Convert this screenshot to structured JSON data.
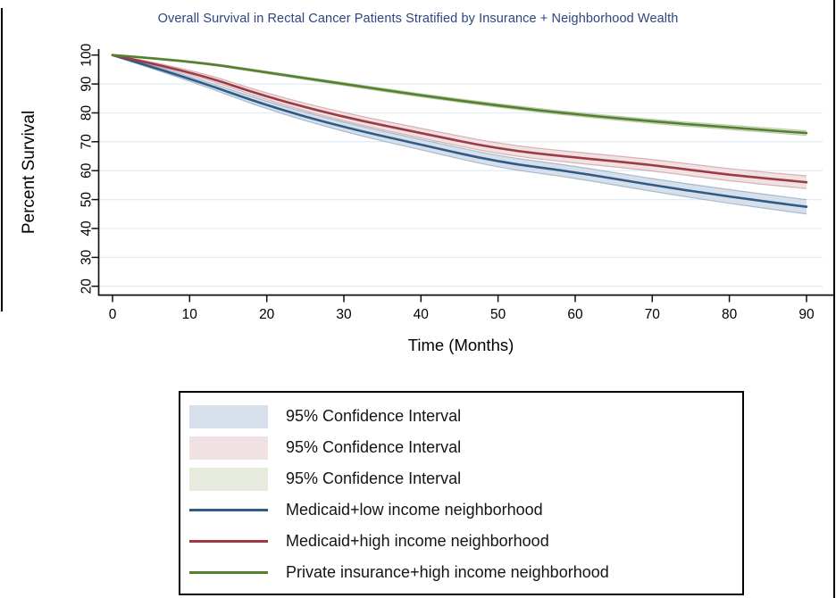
{
  "title": "Overall Survival in Rectal Cancer Patients Stratified by Insurance + Neighborhood Wealth",
  "title_color": "#2b4680",
  "chart_data": {
    "type": "line",
    "subtype": "kaplan-meier-survival",
    "title": "Overall Survival in Rectal Cancer Patients Stratified by Insurance + Neighborhood Wealth",
    "xlabel": "Time (Months)",
    "ylabel": "Percent Survival",
    "x": [
      0,
      10,
      20,
      30,
      40,
      50,
      60,
      70,
      80,
      90
    ],
    "x_ticks": [
      0,
      10,
      20,
      30,
      40,
      50,
      60,
      70,
      80,
      90
    ],
    "y_ticks": [
      20,
      30,
      40,
      50,
      60,
      70,
      80,
      90,
      100
    ],
    "xlim": [
      0,
      93
    ],
    "ylim": [
      17,
      100
    ],
    "grid": "horizontal",
    "gridline_values": [
      20,
      30,
      40,
      50,
      60,
      70,
      80,
      90
    ],
    "grid_color": "#e3edf4",
    "axis_color": "#111111",
    "series": [
      {
        "name": "Medicaid+low income neighborhood",
        "color": "#2e5c87",
        "ci_label": "95% Confidence Interval",
        "ci_fill": "#d7dfea",
        "values": [
          100,
          92,
          82.5,
          75,
          69,
          63,
          59.5,
          55,
          51,
          47.5
        ],
        "ci_halfwidth": [
          0.2,
          0.9,
          1.3,
          1.6,
          1.8,
          2.0,
          2.1,
          2.2,
          2.4,
          2.5
        ]
      },
      {
        "name": "Medicaid+high income neighborhood",
        "color": "#9d3b45",
        "ci_label": "95% Confidence Interval",
        "ci_fill": "#f0e1e3",
        "values": [
          100,
          94.5,
          85.5,
          78.5,
          73,
          67.5,
          64.5,
          62,
          58.5,
          56
        ],
        "ci_halfwidth": [
          0.2,
          0.8,
          1.2,
          1.5,
          1.7,
          1.8,
          1.9,
          2.0,
          2.1,
          2.2
        ]
      },
      {
        "name": "Private insurance+high income neighborhood",
        "color": "#55802e",
        "ci_label": "95% Confidence Interval",
        "ci_fill": "#e6ebde",
        "values": [
          100,
          98,
          94,
          90,
          86,
          82.5,
          79.5,
          77,
          75,
          73
        ],
        "ci_halfwidth": [
          0.15,
          0.3,
          0.4,
          0.5,
          0.55,
          0.6,
          0.65,
          0.7,
          0.75,
          0.8
        ]
      }
    ],
    "legend_position": "below"
  },
  "legend": {
    "items": [
      {
        "type": "fill",
        "label": "95% Confidence Interval",
        "color": "#d7dfea"
      },
      {
        "type": "fill",
        "label": "95% Confidence Interval",
        "color": "#f0e1e3"
      },
      {
        "type": "fill",
        "label": "95% Confidence Interval",
        "color": "#e6ebde"
      },
      {
        "type": "line",
        "label": "Medicaid+low income neighborhood",
        "color": "#2e5c87"
      },
      {
        "type": "line",
        "label": "Medicaid+high income neighborhood",
        "color": "#9d3b45"
      },
      {
        "type": "line",
        "label": "Private insurance+high income neighborhood",
        "color": "#55802e"
      }
    ]
  }
}
